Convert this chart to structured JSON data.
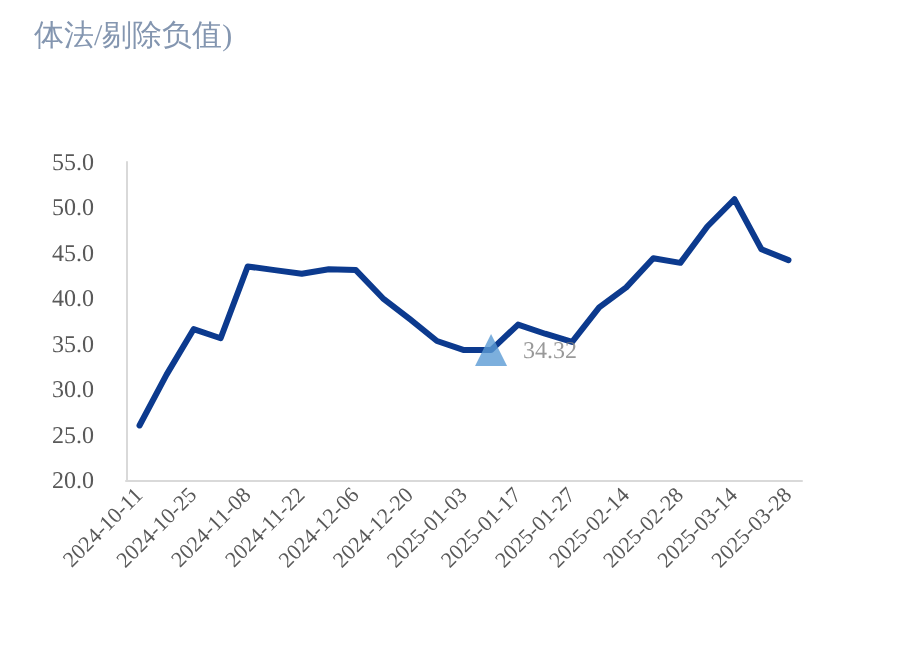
{
  "chart_data": {
    "type": "line",
    "title": "体法/剔除负值)",
    "categories": [
      "2024-10-11",
      null,
      "2024-10-25",
      null,
      "2024-11-08",
      null,
      "2024-11-22",
      null,
      "2024-12-06",
      null,
      "2024-12-20",
      null,
      "2025-01-03",
      null,
      "2025-01-17",
      null,
      "2025-01-27",
      null,
      "2025-02-14",
      null,
      "2025-02-28",
      null,
      "2025-03-14",
      null,
      "2025-03-28"
    ],
    "series": [
      {
        "color": "#0c3a8e",
        "values": [
          26.0,
          31.6,
          36.6,
          35.6,
          43.5,
          43.1,
          42.7,
          43.2,
          43.1,
          40.0,
          37.7,
          35.3,
          34.3,
          34.3,
          37.1,
          36.1,
          35.2,
          39.0,
          41.2,
          44.4,
          43.9,
          47.9,
          50.9,
          45.4,
          44.2
        ]
      },
      {
        "type": "scatter",
        "color": "#5b9bd5",
        "marker": "triangle",
        "values": [
          null,
          null,
          null,
          null,
          null,
          null,
          null,
          null,
          null,
          null,
          null,
          null,
          null,
          34.32,
          null,
          null,
          null,
          null,
          null,
          null,
          null,
          null,
          null,
          null,
          null
        ],
        "value_labels": [
          null,
          null,
          null,
          null,
          null,
          null,
          null,
          null,
          null,
          null,
          null,
          null,
          null,
          "34.32",
          null,
          null,
          null,
          null,
          null,
          null,
          null,
          null,
          null,
          null,
          null
        ]
      }
    ],
    "ylim": [
      20,
      55
    ],
    "yticks": [
      {
        "value": 20,
        "label": "20.0"
      },
      {
        "value": 25,
        "label": "25.0"
      },
      {
        "value": 30,
        "label": "30.0"
      },
      {
        "value": 35,
        "label": "35.0"
      },
      {
        "value": 40,
        "label": "40.0"
      },
      {
        "value": 45,
        "label": "45.0"
      },
      {
        "value": 50,
        "label": "50.0"
      },
      {
        "value": 55,
        "label": "55.0"
      }
    ],
    "grid": false,
    "marker": "none",
    "line_style": "solid"
  }
}
